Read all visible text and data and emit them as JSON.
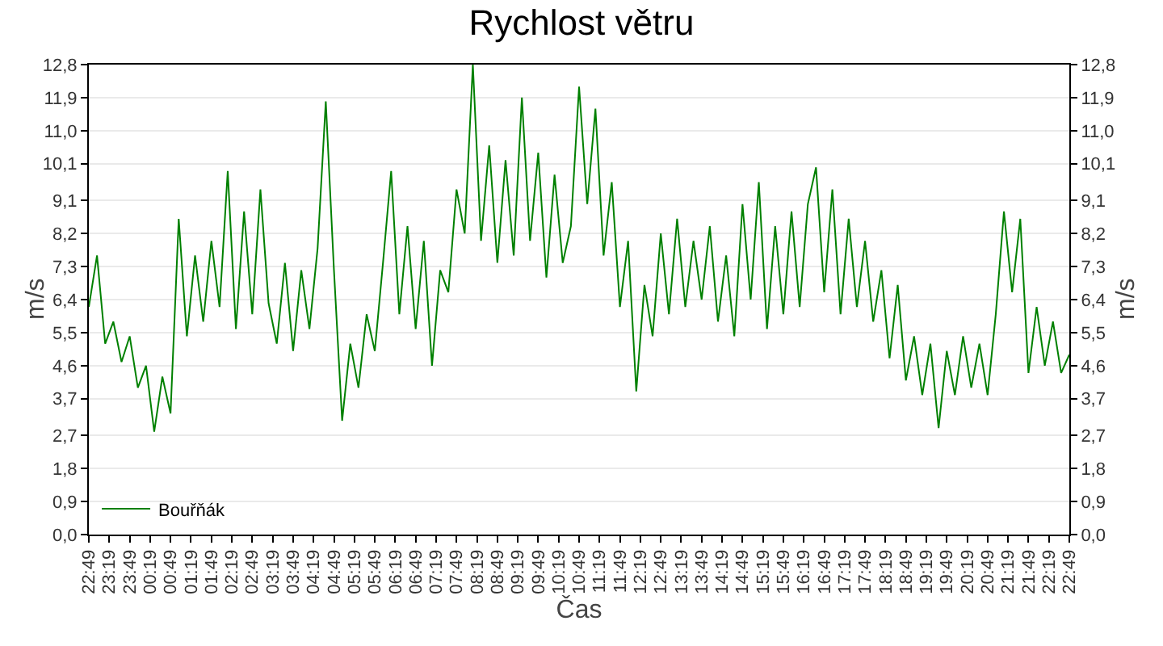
{
  "chart_data": {
    "type": "line",
    "title": "Rychlost větru",
    "xlabel": "Čas",
    "ylabel": "m/s",
    "y2label": "m/s",
    "x": [
      "--01-01T22:49",
      "--01-01T23:01",
      "--01-01T23:13",
      "--01-01T23:25",
      "--01-01T23:37",
      "--01-01T23:49",
      "--01-02T00:01",
      "--01-02T00:13",
      "--01-02T00:25",
      "--01-02T00:37",
      "--01-02T00:49",
      "--01-02T01:01",
      "--01-02T01:13",
      "--01-02T01:25",
      "--01-02T01:37",
      "--01-02T01:49",
      "--01-02T02:01",
      "--01-02T02:13",
      "--01-02T02:25",
      "--01-02T02:37",
      "--01-02T02:49",
      "--01-02T03:01",
      "--01-02T03:13",
      "--01-02T03:25",
      "--01-02T03:37",
      "--01-02T03:49",
      "--01-02T04:01",
      "--01-02T04:13",
      "--01-02T04:25",
      "--01-02T04:37",
      "--01-02T04:49",
      "--01-02T05:01",
      "--01-02T05:13",
      "--01-02T05:25",
      "--01-02T05:37",
      "--01-02T05:49",
      "--01-02T06:01",
      "--01-02T06:13",
      "--01-02T06:25",
      "--01-02T06:37",
      "--01-02T06:49",
      "--01-02T07:01",
      "--01-02T07:13",
      "--01-02T07:25",
      "--01-02T07:37",
      "--01-02T07:49",
      "--01-02T08:01",
      "--01-02T08:13",
      "--01-02T08:25",
      "--01-02T08:37",
      "--01-02T08:49",
      "--01-02T09:01",
      "--01-02T09:13",
      "--01-02T09:25",
      "--01-02T09:37",
      "--01-02T09:49",
      "--01-02T10:01",
      "--01-02T10:13",
      "--01-02T10:25",
      "--01-02T10:37",
      "--01-02T10:49",
      "--01-02T11:01",
      "--01-02T11:13",
      "--01-02T11:25",
      "--01-02T11:37",
      "--01-02T11:49",
      "--01-02T12:01",
      "--01-02T12:13",
      "--01-02T12:25",
      "--01-02T12:37",
      "--01-02T12:49",
      "--01-02T13:01",
      "--01-02T13:13",
      "--01-02T13:25",
      "--01-02T13:37",
      "--01-02T13:49",
      "--01-02T14:01",
      "--01-02T14:13",
      "--01-02T14:25",
      "--01-02T14:37",
      "--01-02T14:49",
      "--01-02T15:01",
      "--01-02T15:13",
      "--01-02T15:25",
      "--01-02T15:37",
      "--01-02T15:49",
      "--01-02T16:01",
      "--01-02T16:13",
      "--01-02T16:25",
      "--01-02T16:37",
      "--01-02T16:49",
      "--01-02T17:01",
      "--01-02T17:13",
      "--01-02T17:25",
      "--01-02T17:37",
      "--01-02T17:49",
      "--01-02T18:01",
      "--01-02T18:13",
      "--01-02T18:25",
      "--01-02T18:37",
      "--01-02T18:49",
      "--01-02T19:01",
      "--01-02T19:13",
      "--01-02T19:25",
      "--01-02T19:37",
      "--01-02T19:49",
      "--01-02T20:01",
      "--01-02T20:13",
      "--01-02T20:25",
      "--01-02T20:37",
      "--01-02T20:49",
      "--01-02T21:01",
      "--01-02T21:13",
      "--01-02T21:25",
      "--01-02T21:37",
      "--01-02T21:49",
      "--01-02T22:01",
      "--01-02T22:13",
      "--01-02T22:25",
      "--01-02T22:37",
      "--01-02T22:49"
    ],
    "series": [
      {
        "name": "Bouřňák",
        "color": "#008000",
        "values": [
          6.2,
          7.6,
          5.2,
          5.8,
          4.7,
          5.4,
          4.0,
          4.6,
          2.8,
          4.3,
          3.3,
          8.6,
          5.4,
          7.6,
          5.8,
          8.0,
          6.2,
          9.9,
          5.6,
          8.8,
          6.0,
          9.4,
          6.3,
          5.2,
          7.4,
          5.0,
          7.2,
          5.6,
          7.8,
          11.8,
          7.2,
          3.1,
          5.2,
          4.0,
          6.0,
          5.0,
          7.4,
          9.9,
          6.0,
          8.4,
          5.6,
          8.0,
          4.6,
          7.2,
          6.6,
          9.4,
          8.2,
          12.8,
          8.0,
          10.6,
          7.4,
          10.2,
          7.6,
          11.9,
          8.0,
          10.4,
          7.0,
          9.8,
          7.4,
          8.4,
          12.2,
          9.0,
          11.6,
          7.6,
          9.6,
          6.2,
          8.0,
          3.9,
          6.8,
          5.4,
          8.2,
          6.0,
          8.6,
          6.2,
          8.0,
          6.4,
          8.4,
          5.8,
          7.6,
          5.4,
          9.0,
          6.4,
          9.6,
          5.6,
          8.4,
          6.0,
          8.8,
          6.2,
          9.0,
          10.0,
          6.6,
          9.4,
          6.0,
          8.6,
          6.2,
          8.0,
          5.8,
          7.2,
          4.8,
          6.8,
          4.2,
          5.4,
          3.8,
          5.2,
          2.9,
          5.0,
          3.8,
          5.4,
          4.0,
          5.2,
          3.8,
          6.0,
          8.8,
          6.6,
          8.6,
          4.4,
          6.2,
          4.6,
          5.8,
          4.4,
          4.9
        ]
      }
    ],
    "xlim": [
      "--01-01T22:49",
      "--01-02T22:49"
    ],
    "xticks": [
      {
        "value": "--01-01T22:49",
        "label": "22:49"
      },
      {
        "value": "--01-01T23:19",
        "label": "23:19"
      },
      {
        "value": "--01-01T23:49",
        "label": "23:49"
      },
      {
        "value": "--01-02T00:19",
        "label": "00:19"
      },
      {
        "value": "--01-02T00:49",
        "label": "00:49"
      },
      {
        "value": "--01-02T01:19",
        "label": "01:19"
      },
      {
        "value": "--01-02T01:49",
        "label": "01:49"
      },
      {
        "value": "--01-02T02:19",
        "label": "02:19"
      },
      {
        "value": "--01-02T02:49",
        "label": "02:49"
      },
      {
        "value": "--01-02T03:19",
        "label": "03:19"
      },
      {
        "value": "--01-02T03:49",
        "label": "03:49"
      },
      {
        "value": "--01-02T04:19",
        "label": "04:19"
      },
      {
        "value": "--01-02T04:49",
        "label": "04:49"
      },
      {
        "value": "--01-02T05:19",
        "label": "05:19"
      },
      {
        "value": "--01-02T05:49",
        "label": "05:49"
      },
      {
        "value": "--01-02T06:19",
        "label": "06:19"
      },
      {
        "value": "--01-02T06:49",
        "label": "06:49"
      },
      {
        "value": "--01-02T07:19",
        "label": "07:19"
      },
      {
        "value": "--01-02T07:49",
        "label": "07:49"
      },
      {
        "value": "--01-02T08:19",
        "label": "08:19"
      },
      {
        "value": "--01-02T08:49",
        "label": "08:49"
      },
      {
        "value": "--01-02T09:19",
        "label": "09:19"
      },
      {
        "value": "--01-02T09:49",
        "label": "09:49"
      },
      {
        "value": "--01-02T10:19",
        "label": "10:19"
      },
      {
        "value": "--01-02T10:49",
        "label": "10:49"
      },
      {
        "value": "--01-02T11:19",
        "label": "11:19"
      },
      {
        "value": "--01-02T11:49",
        "label": "11:49"
      },
      {
        "value": "--01-02T12:19",
        "label": "12:19"
      },
      {
        "value": "--01-02T12:49",
        "label": "12:49"
      },
      {
        "value": "--01-02T13:19",
        "label": "13:19"
      },
      {
        "value": "--01-02T13:49",
        "label": "13:49"
      },
      {
        "value": "--01-02T14:19",
        "label": "14:19"
      },
      {
        "value": "--01-02T14:49",
        "label": "14:49"
      },
      {
        "value": "--01-02T15:19",
        "label": "15:19"
      },
      {
        "value": "--01-02T15:49",
        "label": "15:49"
      },
      {
        "value": "--01-02T16:19",
        "label": "16:19"
      },
      {
        "value": "--01-02T16:49",
        "label": "16:49"
      },
      {
        "value": "--01-02T17:19",
        "label": "17:19"
      },
      {
        "value": "--01-02T17:49",
        "label": "17:49"
      },
      {
        "value": "--01-02T18:19",
        "label": "18:19"
      },
      {
        "value": "--01-02T18:49",
        "label": "18:49"
      },
      {
        "value": "--01-02T19:19",
        "label": "19:19"
      },
      {
        "value": "--01-02T19:49",
        "label": "19:49"
      },
      {
        "value": "--01-02T20:19",
        "label": "20:19"
      },
      {
        "value": "--01-02T20:49",
        "label": "20:49"
      },
      {
        "value": "--01-02T21:19",
        "label": "21:19"
      },
      {
        "value": "--01-02T21:49",
        "label": "21:49"
      },
      {
        "value": "--01-02T22:19",
        "label": "22:19"
      },
      {
        "value": "--01-02T22:49",
        "label": "22:49"
      }
    ],
    "ylim": [
      0,
      12.8
    ],
    "yticks": [
      {
        "value": 0,
        "label": "0,0"
      },
      {
        "value": 0.9,
        "label": "0,9"
      },
      {
        "value": 1.8,
        "label": "1,8"
      },
      {
        "value": 2.7,
        "label": "2,7"
      },
      {
        "value": 3.7,
        "label": "3,7"
      },
      {
        "value": 4.6,
        "label": "4,6"
      },
      {
        "value": 5.5,
        "label": "5,5"
      },
      {
        "value": 6.4,
        "label": "6,4"
      },
      {
        "value": 7.3,
        "label": "7,3"
      },
      {
        "value": 8.2,
        "label": "8,2"
      },
      {
        "value": 9.1,
        "label": "9,1"
      },
      {
        "value": 10.1,
        "label": "10,1"
      },
      {
        "value": 11.0,
        "label": "11,0"
      },
      {
        "value": 11.9,
        "label": "11,9"
      },
      {
        "value": 12.8,
        "label": "12,8"
      }
    ],
    "y2lim": [
      0,
      12.8
    ],
    "y2ticks": [
      {
        "value": 0,
        "label": "0,0"
      },
      {
        "value": 0.9,
        "label": "0,9"
      },
      {
        "value": 1.8,
        "label": "1,8"
      },
      {
        "value": 2.7,
        "label": "2,7"
      },
      {
        "value": 3.7,
        "label": "3,7"
      },
      {
        "value": 4.6,
        "label": "4,6"
      },
      {
        "value": 5.5,
        "label": "5,5"
      },
      {
        "value": 6.4,
        "label": "6,4"
      },
      {
        "value": 7.3,
        "label": "7,3"
      },
      {
        "value": 8.2,
        "label": "8,2"
      },
      {
        "value": 9.1,
        "label": "9,1"
      },
      {
        "value": 10.1,
        "label": "10,1"
      },
      {
        "value": 11.0,
        "label": "11,0"
      },
      {
        "value": 11.9,
        "label": "11,9"
      },
      {
        "value": 12.8,
        "label": "12,8"
      }
    ],
    "grid": "y",
    "legend": "bottom left",
    "marker": "none",
    "line_style": "solid"
  }
}
